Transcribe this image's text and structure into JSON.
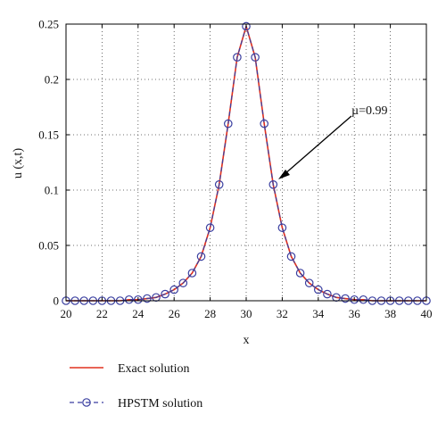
{
  "chart_data": {
    "type": "line",
    "title": "",
    "xlabel": "x",
    "ylabel": "u (x,t)",
    "xlim": [
      20,
      40
    ],
    "ylim": [
      0,
      0.25
    ],
    "x_ticks": [
      20,
      22,
      24,
      26,
      28,
      30,
      32,
      34,
      36,
      38,
      40
    ],
    "y_ticks": [
      0,
      0.05,
      0.1,
      0.15,
      0.2,
      0.25
    ],
    "x_tick_labels": [
      "20",
      "22",
      "24",
      "26",
      "28",
      "30",
      "32",
      "34",
      "36",
      "38",
      "40"
    ],
    "y_tick_labels": [
      "0",
      "0.05",
      "0.1",
      "0.15",
      "0.2",
      "0.25"
    ],
    "grid": true,
    "legend_position": "below the plot",
    "series": [
      {
        "name": "Exact solution",
        "style": "solid line",
        "color": "#e0301e",
        "x": [
          20,
          20.5,
          21,
          21.5,
          22,
          22.5,
          23,
          23.5,
          24,
          24.5,
          25,
          25.5,
          26,
          26.5,
          27,
          27.5,
          28,
          28.5,
          29,
          29.5,
          30,
          30.5,
          31,
          31.5,
          32,
          32.5,
          33,
          33.5,
          34,
          34.5,
          35,
          35.5,
          36,
          36.5,
          37,
          37.5,
          38,
          38.5,
          39,
          39.5,
          40
        ],
        "y": [
          0.0,
          0.0,
          0.0,
          0.0,
          0.0,
          0.0,
          0.0,
          0.001,
          0.001,
          0.002,
          0.003,
          0.006,
          0.01,
          0.016,
          0.025,
          0.04,
          0.066,
          0.105,
          0.16,
          0.22,
          0.248,
          0.22,
          0.16,
          0.105,
          0.066,
          0.04,
          0.025,
          0.016,
          0.01,
          0.006,
          0.003,
          0.002,
          0.001,
          0.001,
          0.0,
          0.0,
          0.0,
          0.0,
          0.0,
          0.0,
          0.0
        ]
      },
      {
        "name": "HPSTM solution",
        "style": "dashed line with circle markers",
        "color": "#3a3fa0",
        "x": [
          20,
          20.5,
          21,
          21.5,
          22,
          22.5,
          23,
          23.5,
          24,
          24.5,
          25,
          25.5,
          26,
          26.5,
          27,
          27.5,
          28,
          28.5,
          29,
          29.5,
          30,
          30.5,
          31,
          31.5,
          32,
          32.5,
          33,
          33.5,
          34,
          34.5,
          35,
          35.5,
          36,
          36.5,
          37,
          37.5,
          38,
          38.5,
          39,
          39.5,
          40
        ],
        "y": [
          0.0,
          0.0,
          0.0,
          0.0,
          0.0,
          0.0,
          0.0,
          0.001,
          0.001,
          0.002,
          0.003,
          0.006,
          0.01,
          0.016,
          0.025,
          0.04,
          0.066,
          0.105,
          0.16,
          0.22,
          0.248,
          0.22,
          0.16,
          0.105,
          0.066,
          0.04,
          0.025,
          0.016,
          0.01,
          0.006,
          0.003,
          0.002,
          0.001,
          0.001,
          0.0,
          0.0,
          0.0,
          0.0,
          0.0,
          0.0,
          0.0
        ]
      }
    ],
    "annotation": {
      "text": "µ=0.99",
      "points_to": [
        31.5,
        0.105
      ]
    }
  }
}
